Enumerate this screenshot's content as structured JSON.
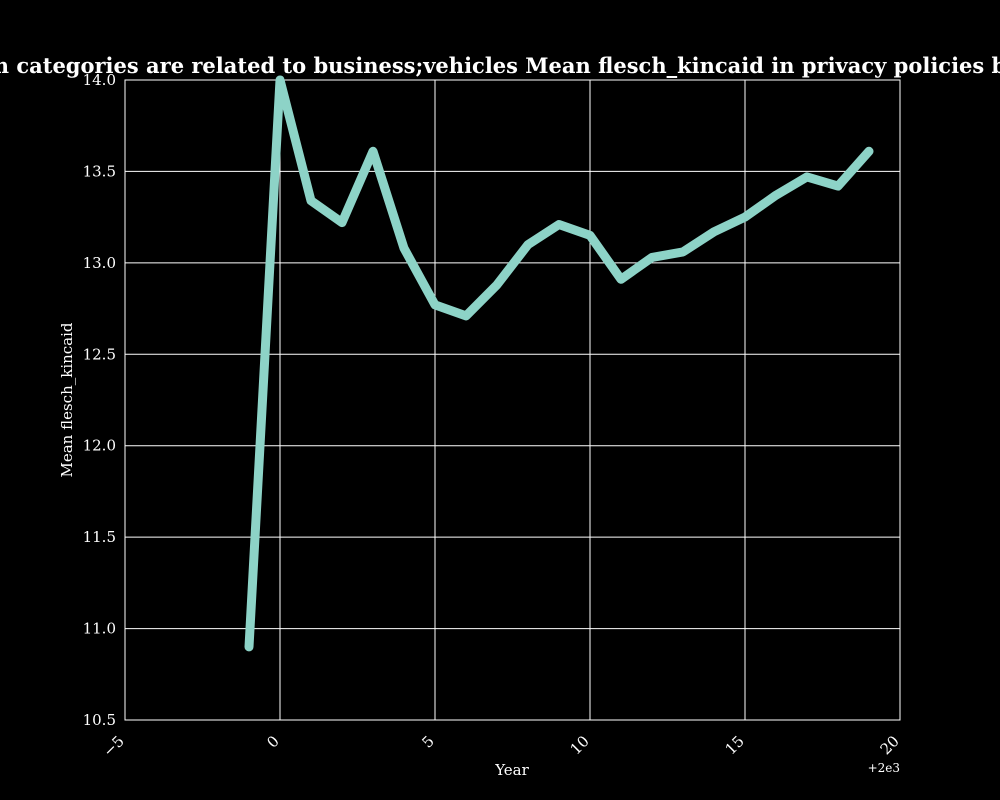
{
  "chart_data": {
    "type": "line",
    "title": "when categories are related to business;vehicles Mean flesch_kincaid in privacy policies by Year",
    "xlabel": "Year",
    "ylabel": "Mean flesch_kincaid",
    "x_offset_label": "+2e3",
    "xlim": [
      -5,
      20
    ],
    "ylim": [
      10.5,
      14.0
    ],
    "x_ticks": [
      "−5",
      "0",
      "5",
      "10",
      "15",
      "20"
    ],
    "y_ticks": [
      "10.5",
      "11.0",
      "11.5",
      "12.0",
      "12.5",
      "13.0",
      "13.5",
      "14.0"
    ],
    "grid": true,
    "line_color": "#8dd3c7",
    "x": [
      -1,
      0,
      1,
      2,
      3,
      4,
      5,
      6,
      7,
      8,
      9,
      10,
      11,
      12,
      13,
      14,
      15,
      16,
      17,
      18,
      19
    ],
    "y": [
      10.9,
      14.0,
      13.34,
      13.22,
      13.61,
      13.08,
      12.77,
      12.71,
      12.88,
      13.1,
      13.21,
      13.15,
      12.91,
      13.03,
      13.06,
      13.17,
      13.25,
      13.37,
      13.47,
      13.42,
      13.61
    ]
  }
}
